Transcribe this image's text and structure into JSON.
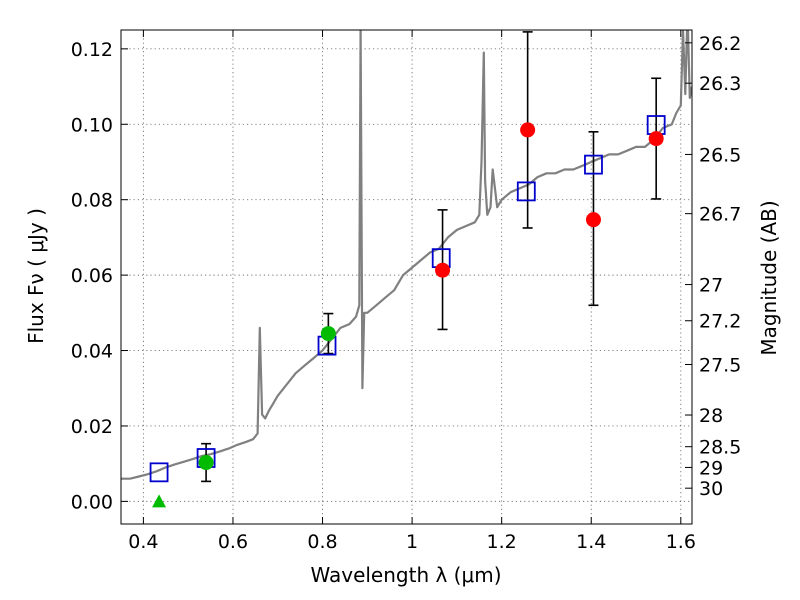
{
  "chart_data": {
    "type": "scatter",
    "xlabel": "Wavelength  λ (μm)",
    "ylabel": "Flux  Fν  ( μJy )",
    "ylabel_right": "Magnitude (AB)",
    "xlim": [
      0.35,
      1.625
    ],
    "ylim": [
      -0.006,
      0.125
    ],
    "grid": true,
    "x_ticks": [
      0.4,
      0.6,
      0.8,
      1.0,
      1.2,
      1.4,
      1.6
    ],
    "x_tick_labels": [
      "0.4",
      "0.6",
      "0.8",
      "1",
      "1.2",
      "1.4",
      "1.6"
    ],
    "y_ticks": [
      0.0,
      0.02,
      0.04,
      0.06,
      0.08,
      0.1,
      0.12
    ],
    "y_tick_labels": [
      "0.00",
      "0.02",
      "0.04",
      "0.06",
      "0.08",
      "0.10",
      "0.12"
    ],
    "mag_ticks": [
      {
        "flux": 0.1216,
        "label": "26.2"
      },
      {
        "flux": 0.1109,
        "label": "26.3"
      },
      {
        "flux": 0.092,
        "label": "26.5"
      },
      {
        "flux": 0.0763,
        "label": "26.7"
      },
      {
        "flux": 0.0575,
        "label": "27"
      },
      {
        "flux": 0.0479,
        "label": "27.2"
      },
      {
        "flux": 0.0363,
        "label": "27.5"
      },
      {
        "flux": 0.0229,
        "label": "28"
      },
      {
        "flux": 0.0145,
        "label": "28.5"
      },
      {
        "flux": 0.009,
        "label": "29"
      },
      {
        "flux": 0.0035,
        "label": "30"
      }
    ],
    "series": [
      {
        "name": "model spectrum",
        "type": "line",
        "color": "#808080",
        "x": [
          0.35,
          0.37,
          0.39,
          0.41,
          0.43,
          0.45,
          0.47,
          0.49,
          0.51,
          0.53,
          0.55,
          0.57,
          0.59,
          0.61,
          0.63,
          0.645,
          0.655,
          0.66,
          0.665,
          0.672,
          0.68,
          0.69,
          0.7,
          0.72,
          0.74,
          0.76,
          0.78,
          0.8,
          0.82,
          0.84,
          0.86,
          0.875,
          0.882,
          0.885,
          0.889,
          0.893,
          0.9,
          0.92,
          0.94,
          0.96,
          0.98,
          1.0,
          1.02,
          1.04,
          1.06,
          1.08,
          1.1,
          1.12,
          1.14,
          1.15,
          1.155,
          1.16,
          1.163,
          1.168,
          1.175,
          1.18,
          1.19,
          1.2,
          1.22,
          1.24,
          1.26,
          1.28,
          1.3,
          1.32,
          1.34,
          1.36,
          1.38,
          1.4,
          1.42,
          1.44,
          1.46,
          1.48,
          1.5,
          1.52,
          1.54,
          1.56,
          1.58,
          1.59,
          1.6,
          1.605,
          1.61,
          1.615,
          1.62,
          1.625
        ],
        "y": [
          0.006,
          0.006,
          0.0066,
          0.0072,
          0.008,
          0.009,
          0.0098,
          0.0105,
          0.0112,
          0.012,
          0.0125,
          0.0132,
          0.014,
          0.015,
          0.0158,
          0.0165,
          0.018,
          0.046,
          0.023,
          0.022,
          0.024,
          0.026,
          0.028,
          0.031,
          0.034,
          0.036,
          0.038,
          0.04,
          0.043,
          0.046,
          0.047,
          0.049,
          0.052,
          0.126,
          0.03,
          0.05,
          0.05,
          0.052,
          0.054,
          0.056,
          0.06,
          0.062,
          0.064,
          0.066,
          0.067,
          0.07,
          0.072,
          0.073,
          0.074,
          0.076,
          0.09,
          0.119,
          0.085,
          0.076,
          0.078,
          0.088,
          0.078,
          0.08,
          0.082,
          0.083,
          0.084,
          0.086,
          0.087,
          0.087,
          0.088,
          0.088,
          0.089,
          0.09,
          0.091,
          0.092,
          0.092,
          0.093,
          0.094,
          0.094,
          0.096,
          0.099,
          0.1,
          0.103,
          0.105,
          0.125,
          0.108,
          0.13,
          0.107,
          0.11
        ]
      },
      {
        "name": "model band fluxes",
        "type": "scatter",
        "marker": "square-open",
        "color": "#0000cc",
        "x": [
          0.435,
          0.54,
          0.81,
          1.065,
          1.255,
          1.405,
          1.545
        ],
        "y": [
          0.0077,
          0.0115,
          0.0413,
          0.0645,
          0.0822,
          0.0893,
          0.0998
        ]
      },
      {
        "name": "observed fluxes (green)",
        "type": "scatter",
        "marker": "circle",
        "color": "#00bb00",
        "x": [
          0.54,
          0.813
        ],
        "y": [
          0.0103,
          0.0445
        ],
        "yerr": [
          0.005,
          0.0053
        ]
      },
      {
        "name": "upper limit (green triangle)",
        "type": "scatter",
        "marker": "triangle",
        "color": "#00bb00",
        "x": [
          0.435
        ],
        "y": [
          0.0
        ]
      },
      {
        "name": "observed fluxes (red)",
        "type": "scatter",
        "marker": "circle",
        "color": "#ff0000",
        "x": [
          1.068,
          1.258,
          1.405,
          1.545
        ],
        "y": [
          0.0613,
          0.0985,
          0.0747,
          0.0962
        ],
        "yerr_low": [
          0.0157,
          0.026,
          0.0227,
          0.016
        ],
        "yerr_high": [
          0.016,
          0.026,
          0.0233,
          0.016
        ]
      }
    ]
  }
}
